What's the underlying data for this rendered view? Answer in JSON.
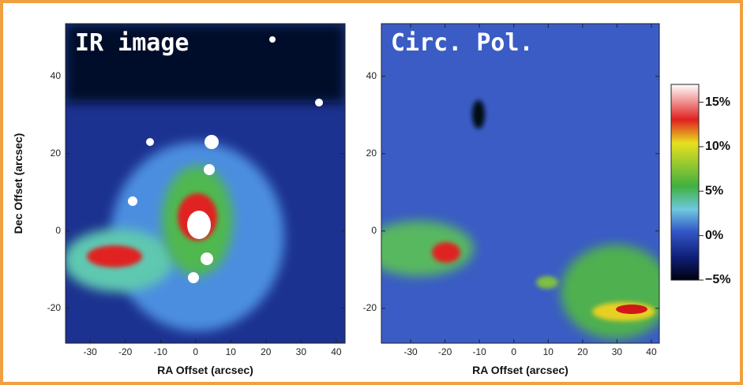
{
  "chart_data": [
    {
      "type": "image",
      "title": "IR image",
      "x_label": "RA Offset (arcsec)",
      "y_label": "Dec Offset (arcsec)",
      "xlim": [
        -37,
        42.5
      ],
      "ylim": [
        -29,
        53.6
      ],
      "xticks": [
        -30,
        -20,
        -10,
        0,
        10,
        20,
        30,
        40
      ],
      "yticks": [
        -20,
        0,
        20,
        40
      ]
    },
    {
      "type": "image",
      "title": "Circ. Pol.",
      "x_label": "RA Offset (arcsec)",
      "xlim": [
        -38.5,
        42.3
      ],
      "ylim": [
        -29,
        53.6
      ],
      "xticks": [
        -30,
        -20,
        -10,
        0,
        10,
        20,
        30,
        40
      ],
      "yticks": [
        -20,
        0,
        20,
        40
      ],
      "colorbar": {
        "clim": [
          -5,
          17
        ],
        "ticks": [
          {
            "value": -5,
            "label": "−5%"
          },
          {
            "value": 0,
            "label": "0%"
          },
          {
            "value": 5,
            "label": "5%"
          },
          {
            "value": 10,
            "label": "10%"
          },
          {
            "value": 15,
            "label": "15%"
          }
        ]
      }
    }
  ]
}
